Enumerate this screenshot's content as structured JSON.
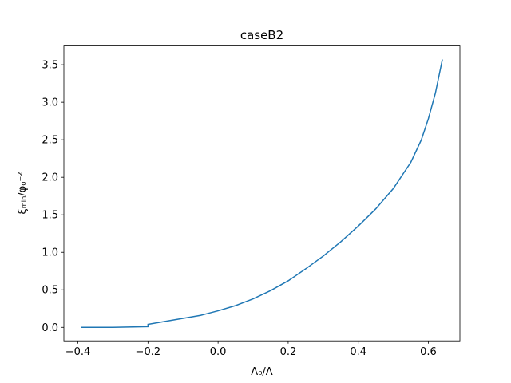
{
  "chart_data": {
    "type": "line",
    "title": "caseB2",
    "x_label": "Λ₀/Λ",
    "y_label": "ξₘᵢₙ/φ₀⁻²",
    "x": [
      -0.39,
      -0.3,
      -0.2,
      -0.2,
      -0.15,
      -0.1,
      -0.05,
      0.0,
      0.05,
      0.1,
      0.15,
      0.2,
      0.25,
      0.3,
      0.35,
      0.4,
      0.45,
      0.5,
      0.55,
      0.58,
      0.6,
      0.62,
      0.64
    ],
    "series": [
      {
        "name": "caseB2",
        "color": "#1f77b4",
        "values": [
          0,
          0,
          0.01,
          0.04,
          0.08,
          0.12,
          0.16,
          0.22,
          0.29,
          0.38,
          0.49,
          0.62,
          0.78,
          0.95,
          1.14,
          1.35,
          1.58,
          1.85,
          2.2,
          2.5,
          2.78,
          3.12,
          3.57
        ]
      }
    ],
    "xlim": [
      -0.44,
      0.69
    ],
    "ylim": [
      -0.18,
      3.75
    ],
    "xticks": [
      {
        "value": -0.4,
        "label": "−0.4"
      },
      {
        "value": -0.2,
        "label": "−0.2"
      },
      {
        "value": 0,
        "label": "0.0"
      },
      0.2,
      0.4,
      0.6
    ],
    "yticks": [
      {
        "value": 0,
        "label": "0.0"
      },
      0.5,
      {
        "value": 1,
        "label": "1.0"
      },
      1.5,
      {
        "value": 2,
        "label": "2.0"
      },
      2.5,
      {
        "value": 3,
        "label": "3.0"
      },
      3.5
    ],
    "grid": false
  }
}
